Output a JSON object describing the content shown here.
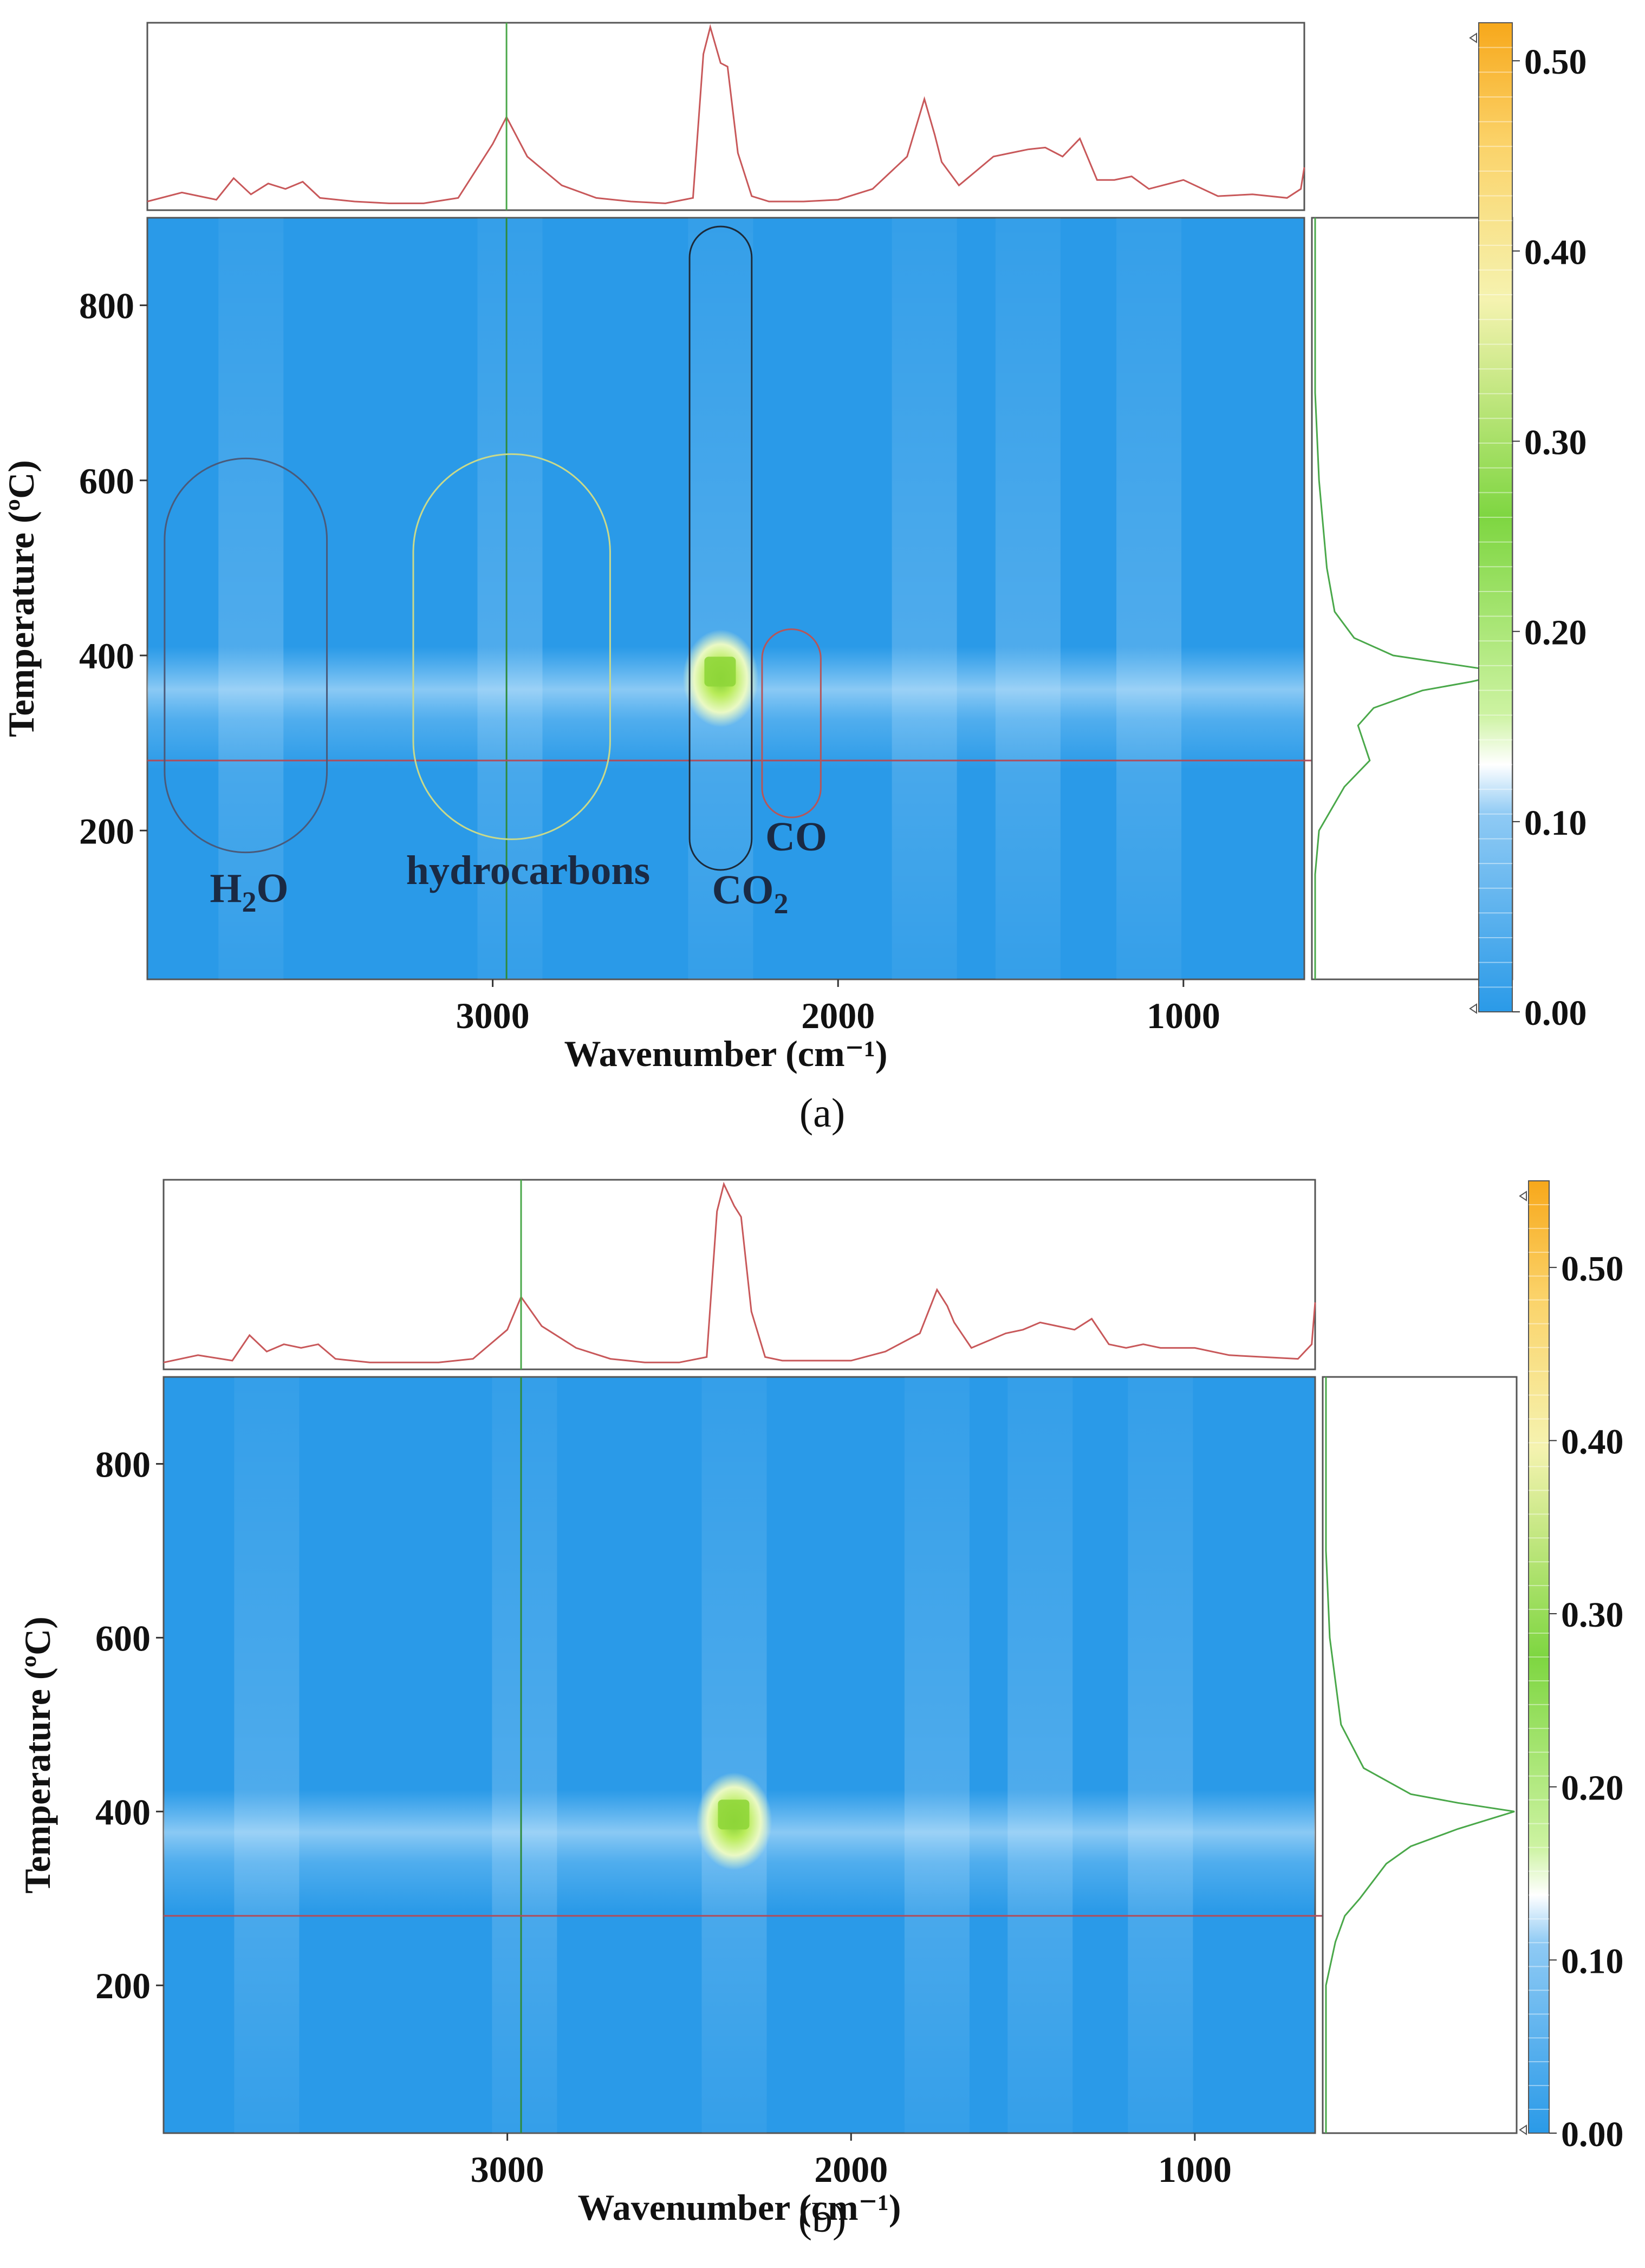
{
  "chart_data": [
    {
      "type": "heatmap",
      "panel_label": "a",
      "caption": "(a)",
      "xlabel": "Wavenumber (cm⁻¹)",
      "ylabel": "Temperature (ºC)",
      "x_ticks": [
        "3000",
        "2000",
        "1000"
      ],
      "y_ticks": [
        "200",
        "400",
        "600",
        "800"
      ],
      "xlim": [
        4000,
        650
      ],
      "ylim": [
        30,
        900
      ],
      "colorbar": {
        "ticks": [
          "0.00",
          "0.10",
          "0.20",
          "0.30",
          "0.40",
          "0.50"
        ],
        "range": [
          0,
          0.52
        ]
      },
      "cursor": {
        "wavenumber": 2960,
        "temperature": 280
      },
      "peak": {
        "wavenumber": 2340,
        "temperature": 380,
        "intensity": 0.27
      },
      "bands": [
        {
          "label_main": "H",
          "label_sub": "2",
          "label_rest": "O",
          "wavenumber_range": [
            3950,
            3480
          ],
          "temperature_range": [
            175,
            625
          ],
          "color": "#4a5a7a"
        },
        {
          "label_main": "hydrocarbons",
          "label_sub": "",
          "label_rest": "",
          "wavenumber_range": [
            3230,
            2660
          ],
          "temperature_range": [
            190,
            630
          ],
          "color": "#c9d98a"
        },
        {
          "label_main": "CO",
          "label_sub": "2",
          "label_rest": "",
          "wavenumber_range": [
            2430,
            2250
          ],
          "temperature_range": [
            155,
            890
          ],
          "color": "#1c2a3a"
        },
        {
          "label_main": "CO",
          "label_sub": "",
          "label_rest": "",
          "wavenumber_range": [
            2220,
            2050
          ],
          "temperature_range": [
            215,
            430
          ],
          "color": "#b5565a"
        }
      ],
      "top_spectrum": {
        "wavenumber": [
          4000,
          3900,
          3800,
          3750,
          3700,
          3650,
          3600,
          3550,
          3500,
          3400,
          3300,
          3200,
          3100,
          3000,
          2960,
          2900,
          2800,
          2700,
          2600,
          2500,
          2420,
          2390,
          2370,
          2340,
          2320,
          2290,
          2250,
          2200,
          2100,
          2000,
          1900,
          1800,
          1750,
          1720,
          1700,
          1650,
          1600,
          1550,
          1500,
          1450,
          1400,
          1350,
          1300,
          1250,
          1200,
          1150,
          1100,
          1000,
          900,
          800,
          700,
          660,
          650
        ],
        "absorbance": [
          0.03,
          0.08,
          0.04,
          0.16,
          0.07,
          0.13,
          0.1,
          0.14,
          0.05,
          0.03,
          0.02,
          0.02,
          0.05,
          0.35,
          0.5,
          0.28,
          0.12,
          0.05,
          0.03,
          0.02,
          0.05,
          0.85,
          1.0,
          0.8,
          0.78,
          0.3,
          0.06,
          0.03,
          0.03,
          0.04,
          0.1,
          0.28,
          0.6,
          0.4,
          0.25,
          0.12,
          0.2,
          0.28,
          0.3,
          0.32,
          0.33,
          0.28,
          0.38,
          0.15,
          0.15,
          0.17,
          0.1,
          0.15,
          0.06,
          0.07,
          0.05,
          0.1,
          0.22
        ]
      },
      "side_profile": {
        "temperature": [
          30,
          150,
          200,
          250,
          280,
          300,
          320,
          340,
          360,
          370,
          380,
          390,
          400,
          420,
          450,
          500,
          600,
          700,
          800,
          900
        ],
        "absorbance": [
          0.0,
          0.0,
          0.02,
          0.15,
          0.28,
          0.25,
          0.22,
          0.3,
          0.55,
          0.8,
          1.0,
          0.7,
          0.4,
          0.2,
          0.1,
          0.06,
          0.02,
          0.0,
          0.0,
          0.0
        ]
      }
    },
    {
      "type": "heatmap",
      "panel_label": "b",
      "caption": "(b)",
      "xlabel": "Wavenumber (cm⁻¹)",
      "ylabel": "Temperature (ºC)",
      "x_ticks": [
        "3000",
        "2000",
        "1000"
      ],
      "y_ticks": [
        "200",
        "400",
        "600",
        "800"
      ],
      "xlim": [
        4000,
        650
      ],
      "ylim": [
        30,
        900
      ],
      "colorbar": {
        "ticks": [
          "0.00",
          "0.10",
          "0.20",
          "0.30",
          "0.40",
          "0.50"
        ],
        "range": [
          0,
          0.55
        ]
      },
      "cursor": {
        "wavenumber": 2960,
        "temperature": 280
      },
      "peak": {
        "wavenumber": 2340,
        "temperature": 395,
        "intensity": 0.27
      },
      "bands": [],
      "top_spectrum": {
        "wavenumber": [
          4000,
          3900,
          3800,
          3750,
          3700,
          3650,
          3600,
          3550,
          3500,
          3400,
          3300,
          3200,
          3100,
          3000,
          2960,
          2900,
          2800,
          2700,
          2600,
          2500,
          2420,
          2390,
          2370,
          2340,
          2320,
          2290,
          2250,
          2200,
          2100,
          2000,
          1900,
          1800,
          1750,
          1720,
          1700,
          1650,
          1600,
          1550,
          1500,
          1450,
          1400,
          1350,
          1300,
          1250,
          1200,
          1150,
          1100,
          1000,
          900,
          800,
          700,
          660,
          650
        ],
        "absorbance": [
          0.02,
          0.06,
          0.03,
          0.17,
          0.08,
          0.12,
          0.1,
          0.12,
          0.04,
          0.02,
          0.02,
          0.02,
          0.04,
          0.2,
          0.38,
          0.22,
          0.1,
          0.04,
          0.02,
          0.02,
          0.05,
          0.85,
          1.0,
          0.88,
          0.82,
          0.3,
          0.05,
          0.03,
          0.03,
          0.03,
          0.08,
          0.18,
          0.42,
          0.33,
          0.24,
          0.1,
          0.14,
          0.18,
          0.2,
          0.24,
          0.22,
          0.2,
          0.26,
          0.12,
          0.1,
          0.12,
          0.1,
          0.1,
          0.06,
          0.05,
          0.04,
          0.12,
          0.35
        ]
      },
      "side_profile": {
        "temperature": [
          30,
          150,
          200,
          250,
          280,
          300,
          320,
          340,
          360,
          380,
          390,
          400,
          410,
          420,
          450,
          500,
          600,
          700,
          800,
          900
        ],
        "absorbance": [
          0.0,
          0.0,
          0.0,
          0.05,
          0.1,
          0.18,
          0.25,
          0.32,
          0.45,
          0.7,
          0.85,
          1.0,
          0.7,
          0.45,
          0.2,
          0.08,
          0.02,
          0.0,
          0.0,
          0.0
        ]
      }
    }
  ]
}
